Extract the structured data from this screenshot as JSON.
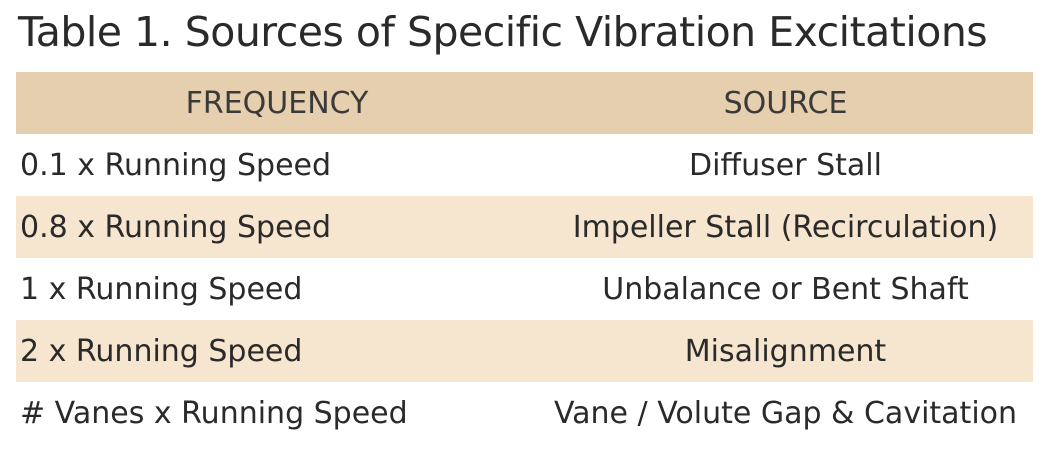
{
  "header": {
    "title": "Table 1. Sources of Specific Vibration Excitations"
  },
  "table": {
    "columns": [
      "FREQUENCY",
      "SOURCE"
    ],
    "rows": [
      [
        "0.1 x Running Speed",
        "Diffuser Stall"
      ],
      [
        "0.8 x Running Speed",
        "Impeller Stall (Recirculation)"
      ],
      [
        "1 x Running Speed",
        "Unbalance or Bent Shaft"
      ],
      [
        "2 x Running Speed",
        "Misalignment"
      ],
      [
        "# Vanes x Running Speed",
        "Vane / Volute Gap & Cavitation"
      ]
    ]
  }
}
